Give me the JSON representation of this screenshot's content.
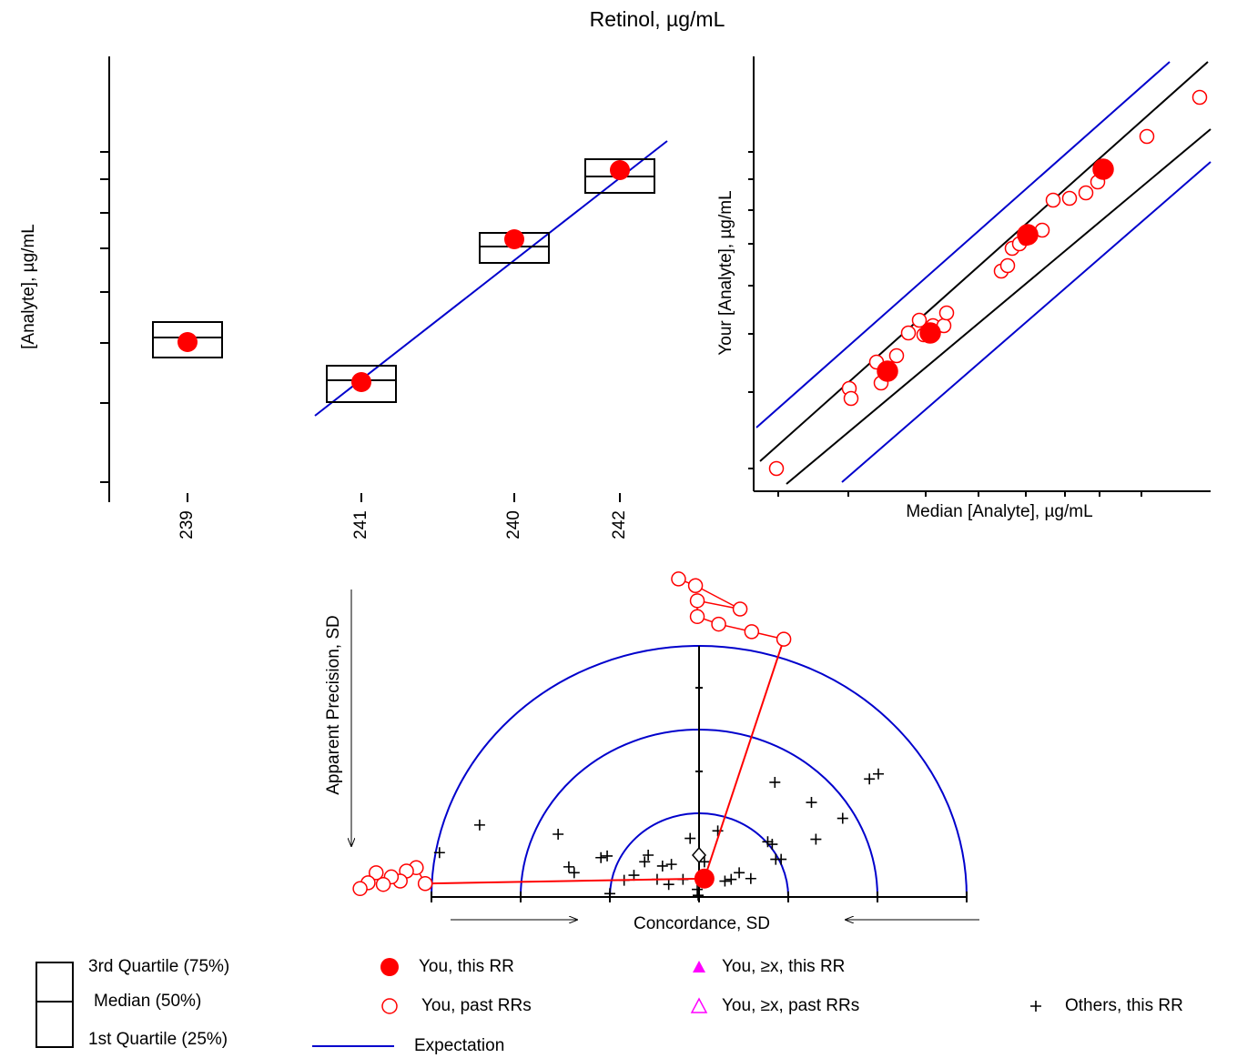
{
  "title": "Retinol, µg/mL",
  "chart_data": [
    {
      "type": "box",
      "ylabel": "[Analyte], µg/mL",
      "categories": [
        "239",
        "241",
        "240",
        "242"
      ],
      "x": [
        8.6,
        27.7,
        44.5,
        56.1
      ],
      "xlim": [
        0,
        62
      ],
      "ylim": [
        0,
        49
      ],
      "yticks": [
        2.2,
        10.9,
        17.5,
        23.1,
        27.9,
        31.8,
        35.5,
        38.5
      ],
      "q1": [
        15.9,
        11.0,
        26.3,
        34.0
      ],
      "median": [
        18.1,
        13.4,
        28.1,
        35.8
      ],
      "q3": [
        19.8,
        15.0,
        29.6,
        37.7
      ],
      "you": [
        17.6,
        13.2,
        28.9,
        36.5
      ],
      "you_color": "#ff0000",
      "box_color": "#000000",
      "expectation": {
        "x": [
          22.6,
          61.3
        ],
        "y": [
          9.5,
          39.7
        ],
        "color": "#0000cc"
      }
    },
    {
      "type": "scatter",
      "xlabel": "Median [Analyte], µg/mL",
      "ylabel": "Your [Analyte], µg/mL",
      "xlim": [
        0,
        50.2
      ],
      "ylim": [
        0,
        47.8
      ],
      "xticks": [
        2.7,
        10.4,
        18.9,
        24.7,
        29.9,
        34.2,
        38.0,
        42.6
      ],
      "yticks": [
        2.5,
        10.9,
        17.3,
        22.6,
        27.2,
        30.9,
        34.3,
        37.3
      ],
      "series": [
        {
          "marker": "circle",
          "color": "#ff0000",
          "x": [
            2.5,
            10.5,
            10.7,
            13.5,
            14.0,
            15.7,
            17.0,
            18.2,
            18.7,
            19.7,
            20.9,
            21.2,
            27.2,
            27.9,
            28.4,
            29.2,
            29.9,
            31.7,
            32.9,
            34.7,
            36.5,
            37.8,
            43.2,
            49.0
          ],
          "y": [
            2.5,
            11.3,
            10.2,
            14.2,
            11.9,
            14.9,
            17.4,
            18.8,
            17.2,
            18.2,
            18.2,
            19.6,
            24.2,
            24.8,
            26.7,
            27.2,
            27.8,
            28.7,
            32.0,
            32.2,
            32.8,
            34.0,
            39.0,
            43.3
          ]
        },
        {
          "marker": "dot",
          "color": "#ff0000",
          "x": [
            14.7,
            19.4,
            30.1,
            38.4
          ],
          "y": [
            13.2,
            17.4,
            28.2,
            35.4
          ]
        }
      ],
      "lines": [
        {
          "color": "#000000",
          "x": [
            0.7,
            49.9
          ],
          "y": [
            3.3,
            47.2
          ]
        },
        {
          "color": "#000000",
          "x": [
            3.6,
            50.2
          ],
          "y": [
            0.8,
            39.8
          ]
        },
        {
          "color": "#0000cc",
          "x": [
            0.3,
            45.7
          ],
          "y": [
            7.0,
            47.2
          ]
        },
        {
          "color": "#0000cc",
          "x": [
            9.7,
            50.2
          ],
          "y": [
            1.0,
            36.2
          ]
        }
      ]
    },
    {
      "type": "concordance",
      "xlabel": "Concordance, SD",
      "ylabel": "Apparent Precision, SD",
      "radii": [
        1,
        2,
        3
      ],
      "circle_color": "#0000cc",
      "xlim": [
        -3,
        3
      ],
      "xticks": [
        -3,
        -2,
        -1,
        0,
        1,
        2,
        3
      ],
      "ylim": [
        0,
        3
      ],
      "yticks": [
        0.5,
        1.5,
        2.5
      ],
      "current": {
        "color": "#ff0000",
        "x": [
          0.06
        ],
        "y": [
          0.22
        ]
      },
      "past": [
        {
          "color": "#ff0000",
          "x": [
            0.95,
            0.59,
            0.22,
            -0.02,
            -0.02,
            0.46,
            -0.04,
            -0.23
          ],
          "y": [
            3.08,
            3.17,
            3.26,
            3.35,
            3.54,
            3.44,
            3.72,
            3.8
          ]
        },
        {
          "color": "#ff0000",
          "x": [
            -3.07,
            -3.17,
            -3.28,
            -3.35,
            -3.45,
            -3.54,
            -3.62,
            -3.71,
            -3.8
          ],
          "y": [
            0.16,
            0.35,
            0.31,
            0.19,
            0.24,
            0.15,
            0.29,
            0.17,
            0.1
          ]
        }
      ],
      "others": {
        "color": "#000000",
        "x": [
          -2.91,
          -2.46,
          -1.58,
          -1.46,
          -1.4,
          -1.1,
          -1.03,
          -1.0,
          -0.84,
          -0.73,
          -0.61,
          -0.57,
          -0.47,
          -0.41,
          -0.34,
          -0.31,
          -0.18,
          -0.1,
          -0.02,
          0.06,
          0.21,
          0.29,
          0.36,
          0.45,
          0.58,
          0.77,
          0.82,
          0.86,
          0.92,
          0.85,
          1.26,
          1.31,
          1.61,
          1.91,
          2.01,
          -0.01
        ],
        "y": [
          0.53,
          0.86,
          0.75,
          0.36,
          0.29,
          0.47,
          0.49,
          0.04,
          0.2,
          0.26,
          0.42,
          0.5,
          0.21,
          0.37,
          0.15,
          0.39,
          0.21,
          0.7,
          0.09,
          0.42,
          0.79,
          0.19,
          0.21,
          0.29,
          0.22,
          0.66,
          0.63,
          0.45,
          0.45,
          1.37,
          1.13,
          0.69,
          0.94,
          1.41,
          1.47,
          0.02
        ]
      },
      "reference": {
        "x": 0,
        "y": 0.5
      }
    }
  ],
  "legend": {
    "quartile_box": [
      "3rd Quartile (75%)",
      "Median (50%)",
      "1st Quartile (25%)"
    ],
    "items": [
      {
        "label": "You, this RR",
        "symbol": "dot",
        "color": "#ff0000"
      },
      {
        "label": "You, past RRs",
        "symbol": "circle",
        "color": "#ff0000"
      },
      {
        "label": "Expectation",
        "symbol": "line",
        "color": "#0000cc"
      },
      {
        "label": "You, ≥x, this RR",
        "symbol": "triangle",
        "color": "#ff00ff"
      },
      {
        "label": "You, ≥x, past RRs",
        "symbol": "triangle-open",
        "color": "#ff00ff"
      },
      {
        "label": "Others, this RR",
        "symbol": "plus",
        "color": "#000000"
      }
    ]
  }
}
